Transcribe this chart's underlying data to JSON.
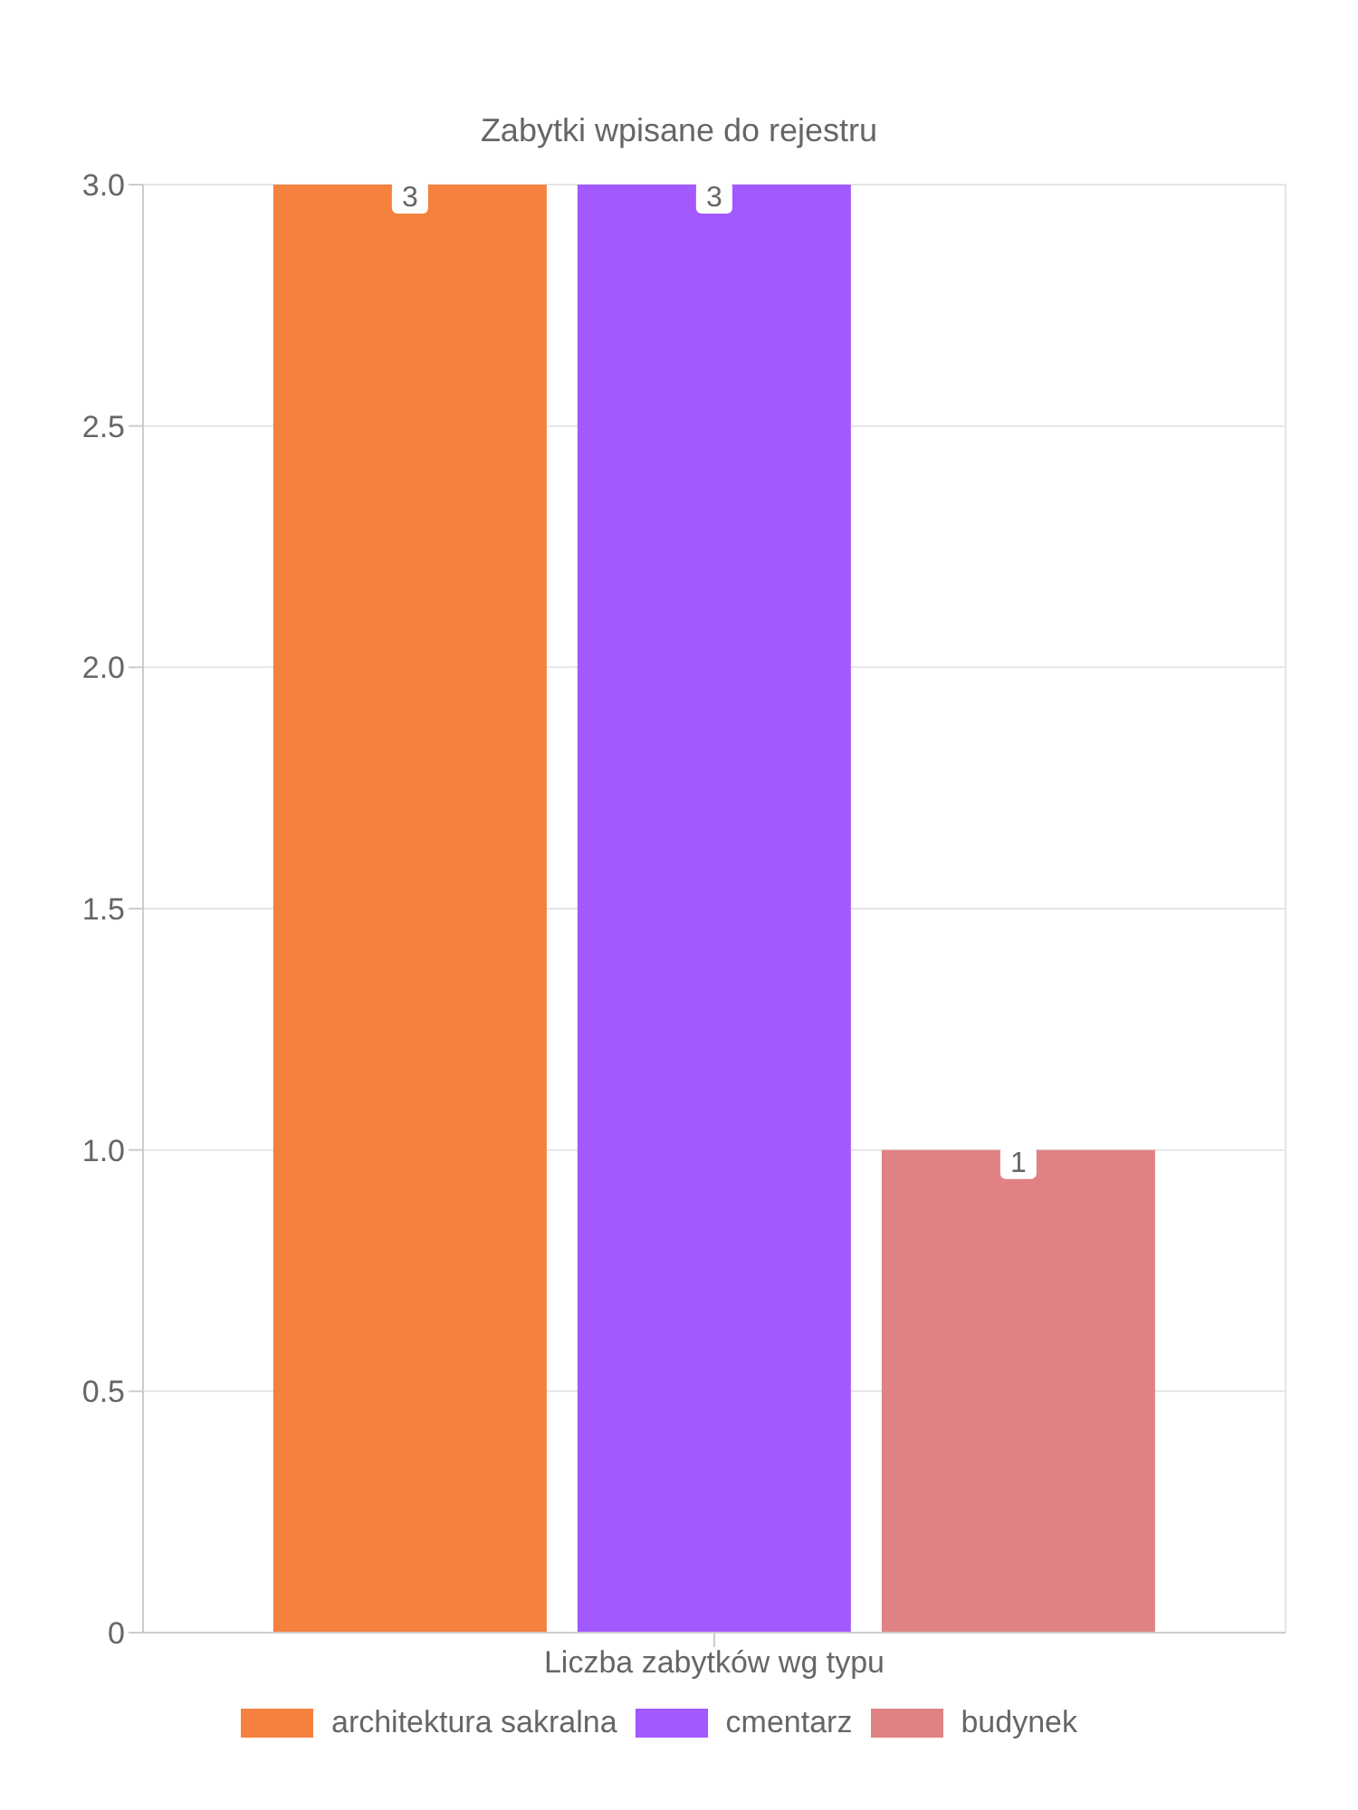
{
  "chart_data": {
    "type": "bar",
    "title": "Zabytki wpisane do rejestru",
    "categories": [
      "Liczba zabytków wg typu"
    ],
    "series": [
      {
        "name": "architektura sakralna",
        "color": "#f5813f",
        "values": [
          3
        ]
      },
      {
        "name": "cmentarz",
        "color": "#a259ff",
        "values": [
          3
        ]
      },
      {
        "name": "budynek",
        "color": "#e08283",
        "values": [
          1
        ]
      }
    ],
    "ylim": [
      0,
      3
    ],
    "yticks": [
      0,
      0.5,
      {
        "value": 1,
        "label": "1.0"
      },
      1.5,
      {
        "value": 2,
        "label": "2.0"
      },
      2.5,
      {
        "value": 3,
        "label": "3.0"
      }
    ],
    "grid": true,
    "legend": "bottom",
    "data_labels": true
  }
}
